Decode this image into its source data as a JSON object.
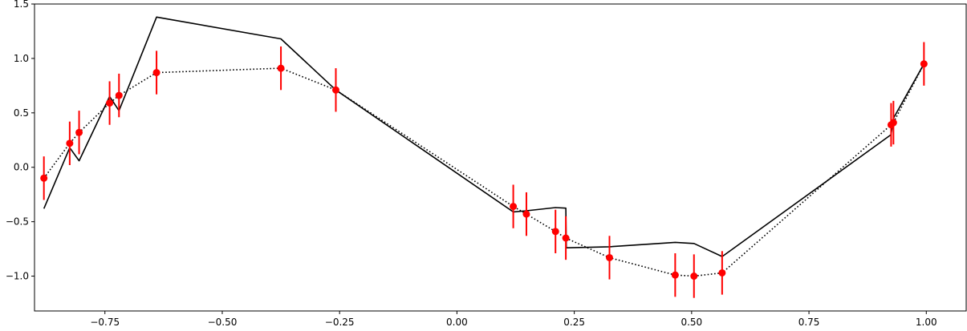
{
  "chart_data": {
    "type": "line",
    "title": "",
    "xlabel": "",
    "ylabel": "",
    "xlim": [
      -0.9,
      1.085
    ],
    "ylim": [
      -1.32,
      1.5
    ],
    "grid": false,
    "legend": "none",
    "x_ticks": [
      -0.75,
      -0.5,
      -0.25,
      0.0,
      0.25,
      0.5,
      0.75,
      1.0
    ],
    "x_tick_labels": [
      "−0.75",
      "−0.50",
      "−0.25",
      "0.00",
      "0.25",
      "0.50",
      "0.75",
      "1.00"
    ],
    "y_ticks": [
      -1.0,
      -0.5,
      0.0,
      0.5,
      1.0,
      1.5
    ],
    "y_tick_labels": [
      "−1.0",
      "−0.5",
      "0.0",
      "0.5",
      "1.0",
      "1.5"
    ],
    "series": [
      {
        "style": "solid",
        "color": "#000000",
        "x": [
          -0.88,
          -0.825,
          -0.805,
          -0.74,
          -0.72,
          -0.64,
          -0.375,
          -0.258,
          0.12,
          0.148,
          0.21,
          0.232,
          0.233,
          0.325,
          0.465,
          0.505,
          0.565,
          0.925,
          0.93,
          0.995
        ],
        "y": [
          -0.38,
          0.18,
          0.06,
          0.65,
          0.52,
          1.38,
          1.18,
          0.71,
          -0.41,
          -0.4,
          -0.37,
          -0.375,
          -0.74,
          -0.73,
          -0.69,
          -0.7,
          -0.82,
          0.3,
          0.45,
          0.95
        ]
      },
      {
        "style": "dotted",
        "color": "#000000",
        "x": [
          -0.88,
          -0.825,
          -0.805,
          -0.74,
          -0.72,
          -0.64,
          -0.375,
          -0.258,
          0.12,
          0.148,
          0.21,
          0.232,
          0.325,
          0.465,
          0.505,
          0.565,
          0.925,
          0.93,
          0.995
        ],
        "y": [
          -0.1,
          0.22,
          0.32,
          0.59,
          0.66,
          0.87,
          0.91,
          0.71,
          -0.36,
          -0.43,
          -0.59,
          -0.65,
          -0.83,
          -0.99,
          -1.0,
          -0.97,
          0.39,
          0.41,
          0.95
        ]
      },
      {
        "style": "errorbar-points",
        "color": "#ff0000",
        "error": 0.2,
        "x": [
          -0.88,
          -0.825,
          -0.805,
          -0.74,
          -0.72,
          -0.64,
          -0.375,
          -0.258,
          0.12,
          0.148,
          0.21,
          0.232,
          0.325,
          0.465,
          0.505,
          0.565,
          0.925,
          0.93,
          0.995
        ],
        "y": [
          -0.1,
          0.22,
          0.32,
          0.59,
          0.66,
          0.87,
          0.91,
          0.71,
          -0.36,
          -0.43,
          -0.59,
          -0.65,
          -0.83,
          -0.99,
          -1.0,
          -0.97,
          0.39,
          0.41,
          0.95
        ]
      }
    ]
  }
}
